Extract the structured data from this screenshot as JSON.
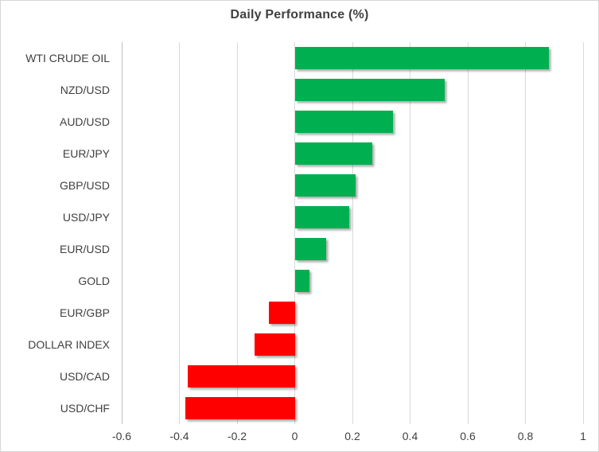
{
  "colors": {
    "positive": "#00b050",
    "negative": "#ff0000",
    "gridline": "#d9d9d9",
    "axis_line": "#c0c0c0",
    "title_text": "#404040",
    "label_text": "#404040",
    "background": "#ffffff",
    "border": "#d6d6d6"
  },
  "chart_data": {
    "type": "bar",
    "orientation": "horizontal",
    "title": "Daily Performance (%)",
    "xlabel": "",
    "ylabel": "",
    "xlim": [
      -0.6,
      1.0
    ],
    "grid": true,
    "legend": false,
    "categories": [
      "WTI CRUDE OIL",
      "NZD/USD",
      "AUD/USD",
      "EUR/JPY",
      "GBP/USD",
      "USD/JPY",
      "EUR/USD",
      "GOLD",
      "EUR/GBP",
      "DOLLAR INDEX",
      "USD/CAD",
      "USD/CHF"
    ],
    "values": [
      0.88,
      0.52,
      0.34,
      0.27,
      0.21,
      0.19,
      0.11,
      0.05,
      -0.09,
      -0.14,
      -0.37,
      -0.38
    ],
    "x_ticks": [
      -0.6,
      -0.4,
      -0.2,
      0,
      0.2,
      0.4,
      0.6,
      0.8,
      1
    ],
    "x_tick_labels": [
      "-0.6",
      "-0.4",
      "-0.2",
      "0",
      "0.2",
      "0.4",
      "0.6",
      "0.8",
      "1"
    ]
  }
}
